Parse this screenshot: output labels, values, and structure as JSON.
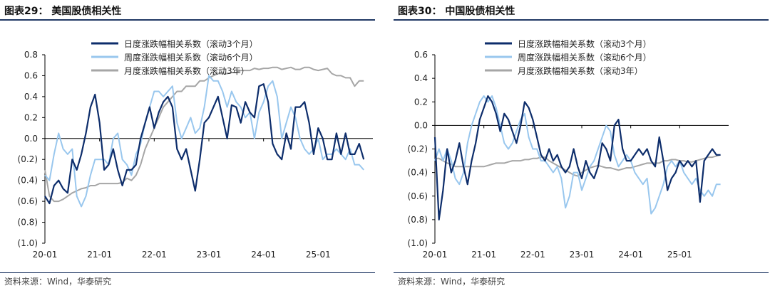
{
  "panels": [
    {
      "title": "图表29：  美国股债相关性",
      "source": "资料来源：Wind，华泰研究"
    },
    {
      "title": "图表30：  中国股债相关性",
      "source": "资料来源：Wind，华泰研究"
    }
  ],
  "chart_data": [
    {
      "type": "line",
      "title": "美国股债相关性",
      "ylim": [
        -1.0,
        0.8
      ],
      "yticks": [
        0.8,
        0.6,
        0.4,
        0.2,
        0.0,
        -0.2,
        -0.4,
        -0.6,
        -0.8,
        -1.0
      ],
      "ytick_labels": [
        "0.8",
        "0.6",
        "0.4",
        "0.2",
        "0.0",
        "(0.2)",
        "(0.4)",
        "(0.6)",
        "(0.8)",
        "(1.0)"
      ],
      "xlim": [
        0,
        72
      ],
      "xticks": [
        0,
        12,
        24,
        36,
        48,
        60
      ],
      "xtick_labels": [
        "20-01",
        "21-01",
        "22-01",
        "23-01",
        "24-01",
        "25-01"
      ],
      "legend_position": "top-left",
      "series": [
        {
          "name": "日度涨跌幅相关系数（滚动3个月）",
          "color": "#0d2d6b",
          "x": [
            0,
            1,
            2,
            3,
            4,
            5,
            6,
            7,
            8,
            9,
            10,
            11,
            12,
            13,
            14,
            15,
            16,
            17,
            18,
            19,
            20,
            21,
            22,
            23,
            24,
            25,
            26,
            27,
            28,
            29,
            30,
            31,
            32,
            33,
            34,
            35,
            36,
            37,
            38,
            39,
            40,
            41,
            42,
            43,
            44,
            45,
            46,
            47,
            48,
            49,
            50,
            51,
            52,
            53,
            54,
            55,
            56,
            57,
            58,
            59,
            60,
            61,
            62,
            63,
            64,
            65,
            66,
            67,
            68,
            69,
            70
          ],
          "y": [
            -0.55,
            -0.62,
            -0.45,
            -0.4,
            -0.48,
            -0.52,
            -0.2,
            -0.3,
            -0.15,
            0.05,
            0.3,
            0.42,
            0.15,
            -0.3,
            -0.25,
            -0.1,
            -0.3,
            -0.45,
            -0.3,
            -0.3,
            -0.25,
            0.0,
            0.15,
            0.3,
            0.1,
            0.25,
            0.35,
            0.4,
            0.3,
            -0.1,
            -0.2,
            -0.1,
            -0.3,
            -0.5,
            -0.2,
            0.15,
            0.2,
            0.3,
            0.4,
            0.2,
            0.0,
            0.32,
            0.3,
            0.15,
            0.35,
            0.25,
            0.2,
            0.5,
            0.52,
            0.35,
            -0.05,
            -0.15,
            -0.2,
            0.05,
            -0.1,
            0.3,
            0.3,
            0.35,
            0.15,
            -0.15,
            0.1,
            0.0,
            -0.2,
            -0.2,
            0.05,
            -0.15,
            0.05,
            -0.15,
            -0.15,
            -0.05,
            -0.2
          ]
        },
        {
          "name": "周度涨跌幅相关系数（滚动6个月）",
          "color": "#99c7ee",
          "x": [
            0,
            1,
            2,
            3,
            4,
            5,
            6,
            7,
            8,
            9,
            10,
            11,
            12,
            13,
            14,
            15,
            16,
            17,
            18,
            19,
            20,
            21,
            22,
            23,
            24,
            25,
            26,
            27,
            28,
            29,
            30,
            31,
            32,
            33,
            34,
            35,
            36,
            37,
            38,
            39,
            40,
            41,
            42,
            43,
            44,
            45,
            46,
            47,
            48,
            49,
            50,
            51,
            52,
            53,
            54,
            55,
            56,
            57,
            58,
            59,
            60,
            61,
            62,
            63,
            64,
            65,
            66,
            67,
            68,
            69,
            70
          ],
          "y": [
            -0.35,
            -0.4,
            -0.15,
            0.05,
            -0.1,
            -0.15,
            -0.1,
            -0.55,
            -0.65,
            -0.55,
            -0.35,
            -0.2,
            -0.2,
            -0.2,
            -0.25,
            0.0,
            0.05,
            -0.2,
            -0.25,
            -0.35,
            -0.15,
            -0.05,
            0.15,
            0.3,
            0.45,
            0.45,
            0.4,
            0.45,
            0.5,
            0.15,
            0.0,
            0.1,
            0.2,
            0.05,
            0.1,
            0.3,
            0.6,
            0.55,
            0.55,
            0.45,
            0.3,
            0.45,
            0.35,
            0.3,
            0.2,
            0.25,
            0.0,
            0.25,
            0.35,
            0.5,
            0.55,
            0.4,
            0.0,
            0.15,
            0.3,
            0.2,
            0.0,
            -0.1,
            -0.15,
            -0.1,
            0.0,
            -0.2,
            -0.15,
            -0.15,
            -0.1,
            -0.15,
            -0.2,
            -0.1,
            -0.25,
            -0.25,
            -0.3
          ]
        },
        {
          "name": "月度涨跌幅相关系数（滚动3年）",
          "color": "#a6a6a6",
          "x": [
            0,
            1,
            2,
            3,
            4,
            5,
            6,
            7,
            8,
            9,
            10,
            11,
            12,
            13,
            14,
            15,
            16,
            17,
            18,
            19,
            20,
            21,
            22,
            23,
            24,
            25,
            26,
            27,
            28,
            29,
            30,
            31,
            32,
            33,
            34,
            35,
            36,
            37,
            38,
            39,
            40,
            41,
            42,
            43,
            44,
            45,
            46,
            47,
            48,
            49,
            50,
            51,
            52,
            53,
            54,
            55,
            56,
            57,
            58,
            59,
            60,
            61,
            62,
            63,
            64,
            65,
            66,
            67,
            68,
            69,
            70
          ],
          "y": [
            -0.3,
            -0.55,
            -0.6,
            -0.6,
            -0.58,
            -0.55,
            -0.52,
            -0.5,
            -0.48,
            -0.47,
            -0.45,
            -0.45,
            -0.43,
            -0.43,
            -0.43,
            -0.43,
            -0.43,
            -0.42,
            -0.38,
            -0.4,
            -0.35,
            -0.25,
            -0.1,
            0.0,
            0.1,
            0.2,
            0.3,
            0.35,
            0.4,
            0.45,
            0.45,
            0.5,
            0.5,
            0.5,
            0.55,
            0.55,
            0.58,
            0.6,
            0.62,
            0.62,
            0.62,
            0.63,
            0.63,
            0.65,
            0.65,
            0.65,
            0.67,
            0.66,
            0.67,
            0.67,
            0.68,
            0.68,
            0.66,
            0.67,
            0.68,
            0.66,
            0.66,
            0.68,
            0.68,
            0.66,
            0.65,
            0.66,
            0.67,
            0.62,
            0.6,
            0.6,
            0.58,
            0.58,
            0.5,
            0.55,
            0.55
          ]
        }
      ]
    },
    {
      "type": "line",
      "title": "中国股债相关性",
      "ylim": [
        -1.0,
        0.6
      ],
      "yticks": [
        0.6,
        0.4,
        0.2,
        0.0,
        -0.2,
        -0.4,
        -0.6,
        -0.8,
        -1.0
      ],
      "ytick_labels": [
        "0.6",
        "0.4",
        "0.2",
        "0.0",
        "(0.2)",
        "(0.4)",
        "(0.6)",
        "(0.8)",
        "(1.0)"
      ],
      "xlim": [
        0,
        72
      ],
      "xticks": [
        0,
        12,
        24,
        36,
        48,
        60
      ],
      "xtick_labels": [
        "20-01",
        "21-01",
        "22-01",
        "23-01",
        "24-01",
        "25-01"
      ],
      "legend_position": "top-right",
      "series": [
        {
          "name": "日度涨跌幅相关系数（滚动3个月）",
          "color": "#0d2d6b",
          "x": [
            0,
            1,
            2,
            3,
            4,
            5,
            6,
            7,
            8,
            9,
            10,
            11,
            12,
            13,
            14,
            15,
            16,
            17,
            18,
            19,
            20,
            21,
            22,
            23,
            24,
            25,
            26,
            27,
            28,
            29,
            30,
            31,
            32,
            33,
            34,
            35,
            36,
            37,
            38,
            39,
            40,
            41,
            42,
            43,
            44,
            45,
            46,
            47,
            48,
            49,
            50,
            51,
            52,
            53,
            54,
            55,
            56,
            57,
            58,
            59,
            60,
            61,
            62,
            63,
            64,
            65,
            66,
            67,
            68,
            69,
            70
          ],
          "y": [
            -0.1,
            -0.8,
            -0.55,
            -0.2,
            -0.4,
            -0.3,
            -0.15,
            -0.35,
            -0.5,
            -0.3,
            -0.15,
            0.05,
            0.15,
            0.25,
            0.2,
            0.1,
            -0.05,
            0.1,
            0.05,
            -0.05,
            -0.15,
            0.0,
            0.2,
            0.15,
            0.05,
            -0.1,
            -0.25,
            -0.3,
            -0.2,
            -0.3,
            -0.25,
            -0.35,
            -0.4,
            -0.35,
            -0.2,
            -0.35,
            -0.45,
            -0.3,
            -0.4,
            -0.45,
            -0.35,
            -0.15,
            -0.2,
            -0.3,
            0.0,
            0.05,
            -0.2,
            -0.3,
            -0.3,
            -0.25,
            -0.2,
            -0.25,
            -0.2,
            -0.3,
            -0.35,
            -0.1,
            -0.3,
            -0.55,
            -0.45,
            -0.4,
            -0.3,
            -0.35,
            -0.3,
            -0.35,
            -0.3,
            -0.65,
            -0.3,
            -0.25,
            -0.2,
            -0.25,
            -0.25
          ]
        },
        {
          "name": "周度涨跌幅相关系数（滚动6个月）",
          "color": "#99c7ee",
          "x": [
            0,
            1,
            2,
            3,
            4,
            5,
            6,
            7,
            8,
            9,
            10,
            11,
            12,
            13,
            14,
            15,
            16,
            17,
            18,
            19,
            20,
            21,
            22,
            23,
            24,
            25,
            26,
            27,
            28,
            29,
            30,
            31,
            32,
            33,
            34,
            35,
            36,
            37,
            38,
            39,
            40,
            41,
            42,
            43,
            44,
            45,
            46,
            47,
            48,
            49,
            50,
            51,
            52,
            53,
            54,
            55,
            56,
            57,
            58,
            59,
            60,
            61,
            62,
            63,
            64,
            65,
            66,
            67,
            68,
            69,
            70
          ],
          "y": [
            -0.3,
            -0.2,
            -0.3,
            -0.2,
            -0.3,
            -0.45,
            -0.5,
            -0.4,
            -0.15,
            0.0,
            0.1,
            0.2,
            0.25,
            0.2,
            0.25,
            0.15,
            0.0,
            -0.15,
            -0.2,
            -0.15,
            -0.05,
            0.05,
            0.1,
            -0.1,
            -0.2,
            -0.2,
            -0.3,
            -0.3,
            -0.35,
            -0.4,
            -0.35,
            -0.45,
            -0.7,
            -0.6,
            -0.4,
            -0.4,
            -0.55,
            -0.45,
            -0.35,
            -0.3,
            -0.2,
            -0.1,
            0.0,
            -0.05,
            -0.25,
            -0.35,
            -0.3,
            -0.25,
            -0.3,
            -0.4,
            -0.45,
            -0.5,
            -0.45,
            -0.75,
            -0.7,
            -0.6,
            -0.5,
            -0.35,
            -0.3,
            -0.35,
            -0.3,
            -0.4,
            -0.45,
            -0.5,
            -0.45,
            -0.55,
            -0.6,
            -0.55,
            -0.6,
            -0.5,
            -0.5
          ]
        },
        {
          "name": "月度涨跌幅相关系数（滚动3年）",
          "color": "#a6a6a6",
          "x": [
            0,
            1,
            2,
            3,
            4,
            5,
            6,
            7,
            8,
            9,
            10,
            11,
            12,
            13,
            14,
            15,
            16,
            17,
            18,
            19,
            20,
            21,
            22,
            23,
            24,
            25,
            26,
            27,
            28,
            29,
            30,
            31,
            32,
            33,
            34,
            35,
            36,
            37,
            38,
            39,
            40,
            41,
            42,
            43,
            44,
            45,
            46,
            47,
            48,
            49,
            50,
            51,
            52,
            53,
            54,
            55,
            56,
            57,
            58,
            59,
            60,
            61,
            62,
            63,
            64,
            65,
            66,
            67,
            68,
            69,
            70
          ],
          "y": [
            -0.28,
            -0.28,
            -0.3,
            -0.32,
            -0.33,
            -0.35,
            -0.35,
            -0.35,
            -0.35,
            -0.35,
            -0.35,
            -0.35,
            -0.35,
            -0.34,
            -0.33,
            -0.32,
            -0.32,
            -0.32,
            -0.31,
            -0.3,
            -0.3,
            -0.3,
            -0.29,
            -0.29,
            -0.28,
            -0.28,
            -0.27,
            -0.27,
            -0.3,
            -0.32,
            -0.34,
            -0.36,
            -0.38,
            -0.4,
            -0.42,
            -0.43,
            -0.4,
            -0.38,
            -0.36,
            -0.35,
            -0.34,
            -0.35,
            -0.36,
            -0.36,
            -0.37,
            -0.38,
            -0.37,
            -0.36,
            -0.36,
            -0.35,
            -0.34,
            -0.33,
            -0.32,
            -0.32,
            -0.32,
            -0.32,
            -0.3,
            -0.3,
            -0.29,
            -0.29,
            -0.3,
            -0.3,
            -0.31,
            -0.31,
            -0.3,
            -0.29,
            -0.28,
            -0.27,
            -0.27,
            -0.26,
            -0.25
          ]
        }
      ]
    }
  ]
}
